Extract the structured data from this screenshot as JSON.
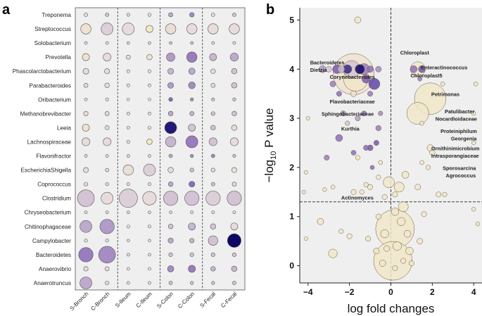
{
  "panels": {
    "a": "a",
    "b": "b"
  },
  "chart_data": [
    {
      "type": "bubble-matrix",
      "title": "",
      "rows": [
        "Treponema",
        "Streptococcus",
        "Solobacterium",
        "Prevotella",
        "Phascolarctobacterium",
        "Parabacteroides",
        "Oribacterium",
        "Methanobrevibacter",
        "Leeia",
        "Lachnospiraceae",
        "Flavonifractor",
        "EscherichiaShigella",
        "Coprococcus",
        "Clostridium",
        "Chryseobacterium",
        "Chitinophagaceae",
        "Campylobacter",
        "Bacteroidetes",
        "Anaerovibrio",
        "Anaerotruncus"
      ],
      "columns": [
        "S-Bronch",
        "C-Bronch",
        "S-Ileum",
        "C-Ileum",
        "S-Colon",
        "C-Colon",
        "S-Fecal",
        "C-Fecal"
      ],
      "size_values": [
        [
          0.08,
          0.08,
          0.05,
          0.06,
          0.12,
          0.14,
          0.08,
          0.08
        ],
        [
          0.5,
          0.6,
          0.6,
          0.3,
          0.5,
          0.5,
          0.5,
          0.5
        ],
        [
          0.04,
          0.04,
          0.03,
          0.03,
          0.04,
          0.04,
          0.04,
          0.04
        ],
        [
          0.3,
          0.35,
          0.12,
          0.2,
          0.38,
          0.5,
          0.3,
          0.36
        ],
        [
          0.22,
          0.18,
          0.05,
          0.06,
          0.22,
          0.25,
          0.15,
          0.2
        ],
        [
          0.12,
          0.15,
          0.05,
          0.05,
          0.22,
          0.28,
          0.12,
          0.2
        ],
        [
          0.04,
          0.06,
          0.03,
          0.03,
          0.1,
          0.06,
          0.05,
          0.06
        ],
        [
          0.14,
          0.12,
          0.05,
          0.05,
          0.15,
          0.12,
          0.1,
          0.15
        ],
        [
          0.3,
          0.12,
          0.05,
          0.06,
          0.6,
          0.3,
          0.15,
          0.2
        ],
        [
          0.35,
          0.35,
          0.06,
          0.2,
          0.5,
          0.6,
          0.35,
          0.35
        ],
        [
          0.04,
          0.04,
          0.04,
          0.03,
          0.08,
          0.06,
          0.08,
          0.05
        ],
        [
          0.18,
          0.08,
          0.5,
          0.6,
          0.2,
          0.1,
          0.1,
          0.18
        ],
        [
          0.1,
          0.06,
          0.05,
          0.05,
          0.15,
          0.22,
          0.08,
          0.12
        ],
        [
          0.9,
          0.6,
          1.0,
          0.7,
          0.75,
          0.75,
          0.75,
          0.75
        ],
        [
          0.04,
          0.04,
          0.03,
          0.03,
          0.04,
          0.04,
          0.04,
          0.04
        ],
        [
          0.6,
          0.75,
          0.06,
          0.05,
          0.15,
          0.3,
          0.2,
          0.3
        ],
        [
          0.06,
          0.06,
          0.03,
          0.03,
          0.18,
          0.14,
          0.45,
          0.7
        ],
        [
          0.75,
          0.9,
          0.04,
          0.04,
          0.1,
          0.1,
          0.1,
          0.1
        ],
        [
          0.14,
          0.12,
          0.04,
          0.04,
          0.25,
          0.3,
          0.15,
          0.2
        ],
        [
          0.6,
          0.1,
          0.04,
          0.04,
          0.08,
          0.06,
          0.06,
          0.08
        ]
      ],
      "color_values": [
        [
          0.2,
          0.3,
          0.2,
          0.1,
          0.4,
          0.5,
          0.2,
          0.3
        ],
        [
          0.1,
          0.25,
          0.2,
          0.0,
          0.15,
          0.2,
          0.2,
          0.2
        ],
        [
          0.2,
          0.2,
          0.2,
          0.2,
          0.3,
          0.3,
          0.2,
          0.2
        ],
        [
          0.1,
          0.2,
          0.1,
          0.1,
          0.45,
          0.55,
          0.35,
          0.4
        ],
        [
          0.2,
          0.15,
          0.1,
          0.1,
          0.35,
          0.4,
          0.2,
          0.3
        ],
        [
          0.2,
          0.2,
          0.1,
          0.1,
          0.45,
          0.5,
          0.2,
          0.3
        ],
        [
          0.2,
          0.2,
          0.1,
          0.1,
          0.6,
          0.5,
          0.3,
          0.3
        ],
        [
          0.2,
          0.2,
          0.1,
          0.1,
          0.4,
          0.35,
          0.3,
          0.3
        ],
        [
          0.1,
          0.2,
          0.1,
          0.1,
          0.95,
          0.3,
          0.3,
          0.2
        ],
        [
          0.2,
          0.2,
          0.1,
          0.0,
          0.35,
          0.55,
          0.3,
          0.2
        ],
        [
          0.2,
          0.2,
          0.2,
          0.2,
          0.4,
          0.5,
          0.5,
          0.3
        ],
        [
          0.2,
          0.2,
          0.15,
          0.25,
          0.2,
          0.3,
          0.2,
          0.1
        ],
        [
          0.2,
          0.2,
          0.1,
          0.1,
          0.4,
          0.6,
          0.3,
          0.2
        ],
        [
          0.3,
          0.2,
          0.25,
          0.2,
          0.3,
          0.3,
          0.25,
          0.3
        ],
        [
          0.2,
          0.2,
          0.1,
          0.1,
          0.2,
          0.2,
          0.2,
          0.2
        ],
        [
          0.4,
          0.45,
          0.1,
          0.1,
          0.3,
          0.35,
          0.3,
          0.2
        ],
        [
          0.2,
          0.2,
          0.1,
          0.1,
          0.4,
          0.35,
          0.3,
          1.0
        ],
        [
          0.55,
          0.5,
          0.1,
          0.1,
          0.3,
          0.3,
          0.3,
          0.3
        ],
        [
          0.2,
          0.2,
          0.1,
          0.1,
          0.5,
          0.55,
          0.35,
          0.35
        ],
        [
          0.4,
          0.2,
          0.1,
          0.1,
          0.3,
          0.3,
          0.3,
          0.3
        ]
      ],
      "group_separators_after_column": [
        2,
        4,
        6
      ],
      "grid": false
    },
    {
      "type": "scatter",
      "title": "",
      "xlabel": "log fold changes",
      "ylabel_parts": [
        "−log",
        "10",
        " P value"
      ],
      "xlim": [
        -4.4,
        4.4
      ],
      "ylim": [
        -0.35,
        5.25
      ],
      "xticks": [
        -4,
        -2,
        0,
        2,
        4
      ],
      "yticks": [
        0,
        1,
        2,
        3,
        4,
        5
      ],
      "reference_lines": {
        "x": 0,
        "y": 1.3
      },
      "grid": false,
      "points": [
        [
          -1.6,
          5.0,
          0.3,
          0.05
        ],
        [
          -1.8,
          3.9,
          3.2,
          0.1
        ],
        [
          -1.7,
          3.8,
          1.8,
          0.05
        ],
        [
          -1.9,
          4.0,
          1.2,
          0.3
        ],
        [
          -1.3,
          4.0,
          0.7,
          0.55
        ],
        [
          -0.8,
          3.7,
          0.7,
          0.8
        ],
        [
          -2.1,
          4.0,
          0.5,
          0.9
        ],
        [
          -1.5,
          4.0,
          0.55,
          1.0
        ],
        [
          -2.6,
          4.0,
          0.5,
          0.7
        ],
        [
          -3.3,
          4.0,
          0.35,
          0.45
        ],
        [
          -2.8,
          3.7,
          0.25,
          0.55
        ],
        [
          -1.2,
          3.8,
          0.45,
          0.7
        ],
        [
          -2.4,
          4.0,
          0.35,
          0.35
        ],
        [
          -1.0,
          4.0,
          0.3,
          0.6
        ],
        [
          -0.6,
          4.0,
          0.25,
          0.5
        ],
        [
          -3.0,
          4.0,
          0.25,
          0.3
        ],
        [
          -2.5,
          3.5,
          0.2,
          0.6
        ],
        [
          -1.0,
          3.5,
          0.2,
          0.55
        ],
        [
          -1.8,
          3.5,
          0.25,
          0.1
        ],
        [
          -2.3,
          3.1,
          0.2,
          0.5
        ],
        [
          -1.6,
          3.0,
          0.2,
          0.45
        ],
        [
          -1.3,
          3.1,
          0.18,
          0.6
        ],
        [
          -0.5,
          3.1,
          0.15,
          0.5
        ],
        [
          -2.1,
          2.9,
          0.15,
          0.3
        ],
        [
          -0.6,
          2.8,
          0.22,
          0.55
        ],
        [
          -2.5,
          2.6,
          0.35,
          0.6
        ],
        [
          -0.7,
          2.5,
          0.2,
          0.7
        ],
        [
          -1.8,
          2.3,
          0.18,
          0.6
        ],
        [
          -1.0,
          2.4,
          0.25,
          0.7
        ],
        [
          -1.2,
          2.4,
          0.2,
          0.6
        ],
        [
          -1.6,
          2.2,
          0.15,
          0.05
        ],
        [
          -3.1,
          2.2,
          0.2,
          0.55
        ],
        [
          -0.9,
          2.0,
          0.12,
          0.6
        ],
        [
          -4.0,
          3.0,
          0.08,
          0.05
        ],
        [
          -0.5,
          2.1,
          0.12,
          0.05
        ],
        [
          1.3,
          4.0,
          1.0,
          0.05
        ],
        [
          1.5,
          4.0,
          0.35,
          0.7
        ],
        [
          1.1,
          4.0,
          0.35,
          0.6
        ],
        [
          1.4,
          3.8,
          0.12,
          0.55
        ],
        [
          2.5,
          3.7,
          0.12,
          0.05
        ],
        [
          4.1,
          3.7,
          0.12,
          0.05
        ],
        [
          1.9,
          3.4,
          2.4,
          0.05
        ],
        [
          1.3,
          3.1,
          1.6,
          0.05
        ],
        [
          1.5,
          2.9,
          0.12,
          0.05
        ],
        [
          4.0,
          3.1,
          0.1,
          0.05
        ],
        [
          1.9,
          2.4,
          0.3,
          0.05
        ],
        [
          2.0,
          2.3,
          0.22,
          0.05
        ],
        [
          1.5,
          2.1,
          0.12,
          0.05
        ],
        [
          1.8,
          2.0,
          0.15,
          0.05
        ],
        [
          4.0,
          2.5,
          0.1,
          0.05
        ],
        [
          0.7,
          1.85,
          0.35,
          0.05
        ],
        [
          0.4,
          1.6,
          0.6,
          0.05
        ],
        [
          1.3,
          1.6,
          0.25,
          0.05
        ],
        [
          0.2,
          1.45,
          0.2,
          0.05
        ],
        [
          -0.1,
          1.7,
          0.7,
          0.05
        ],
        [
          -0.3,
          1.4,
          0.2,
          0.05
        ],
        [
          -1.0,
          1.6,
          0.2,
          0.05
        ],
        [
          -1.4,
          1.5,
          0.15,
          0.05
        ],
        [
          -2.8,
          1.6,
          0.12,
          0.05
        ],
        [
          -3.2,
          1.55,
          0.1,
          0.05
        ],
        [
          -1.8,
          1.5,
          0.2,
          0.05
        ],
        [
          -1.2,
          1.65,
          0.15,
          0.05
        ],
        [
          -0.6,
          1.8,
          0.15,
          0.05
        ],
        [
          -4.1,
          1.9,
          0.08,
          0.05
        ],
        [
          -4.2,
          1.5,
          0.08,
          0.05
        ],
        [
          2.3,
          1.45,
          0.2,
          0.05
        ],
        [
          2.6,
          1.45,
          0.15,
          0.05
        ],
        [
          4.0,
          1.15,
          0.1,
          0.05
        ],
        [
          4.2,
          0.85,
          0.1,
          0.05
        ],
        [
          0.2,
          0.75,
          3.0,
          0.05
        ],
        [
          0.1,
          0.1,
          3.0,
          0.05
        ],
        [
          -0.3,
          0.65,
          0.45,
          0.05
        ],
        [
          0.6,
          1.2,
          0.6,
          0.05
        ],
        [
          0.5,
          0.9,
          0.45,
          0.05
        ],
        [
          0.8,
          0.65,
          0.35,
          0.05
        ],
        [
          0.3,
          0.4,
          0.5,
          0.05
        ],
        [
          0.9,
          0.3,
          0.4,
          0.05
        ],
        [
          1.4,
          0.5,
          0.25,
          0.05
        ],
        [
          1.6,
          1.05,
          0.2,
          0.05
        ],
        [
          -2.0,
          0.6,
          0.2,
          0.05
        ],
        [
          -2.4,
          0.7,
          0.15,
          0.05
        ],
        [
          -3.4,
          0.9,
          0.3,
          0.05
        ],
        [
          -2.8,
          0.25,
          0.5,
          0.05
        ],
        [
          -1.1,
          0.55,
          0.2,
          0.05
        ],
        [
          -0.7,
          0.3,
          0.25,
          0.05
        ],
        [
          -4.1,
          0.55,
          0.08,
          0.05
        ],
        [
          -0.4,
          0.05,
          0.3,
          0.05
        ],
        [
          0.2,
          -0.05,
          0.2,
          0.05
        ],
        [
          -0.2,
          0.35,
          0.25,
          0.05
        ],
        [
          0.6,
          0.1,
          0.2,
          0.05
        ],
        [
          1.0,
          0.05,
          0.2,
          0.05
        ],
        [
          -0.6,
          1.0,
          0.2,
          0.05
        ],
        [
          0.2,
          1.1,
          0.4,
          0.05
        ]
      ],
      "point_fields": [
        "log_fold_change",
        "neg_log10_p",
        "relative_size",
        "color_level"
      ],
      "annotations": [
        {
          "text": "Bacteroidetes",
          "x": -3.9,
          "y": 4.1
        },
        {
          "text": "Dietzia",
          "x": -3.9,
          "y": 3.95
        },
        {
          "text": "Corynebacteriales",
          "x": -2.95,
          "y": 3.8
        },
        {
          "text": "Flavobacteriaceae",
          "x": -2.95,
          "y": 3.3
        },
        {
          "text": "Sphingobacteriaceae",
          "x": -3.35,
          "y": 3.05
        },
        {
          "text": "Kurthia",
          "x": -2.4,
          "y": 2.75
        },
        {
          "text": "Actinomyces",
          "x": -2.4,
          "y": 1.35
        },
        {
          "text": "Chloroplast",
          "x": 0.45,
          "y": 4.3
        },
        {
          "text": "Enteractinococcus",
          "x": 1.45,
          "y": 4.0
        },
        {
          "text": "Chloroplast5",
          "x": 0.95,
          "y": 3.83
        },
        {
          "text": "Petrimonas",
          "x": 1.95,
          "y": 3.45
        },
        {
          "text": "Patulibacter",
          "x": 2.6,
          "y": 3.1
        },
        {
          "text": "Nocardioidaceae",
          "x": 2.15,
          "y": 2.95
        },
        {
          "text": "Proteiniphilum",
          "x": 2.4,
          "y": 2.7
        },
        {
          "text": "Georgenia",
          "x": 2.9,
          "y": 2.55
        },
        {
          "text": "Ornithinimicrobium",
          "x": 1.95,
          "y": 2.35
        },
        {
          "text": "Intrasporangiaceae",
          "x": 1.95,
          "y": 2.2
        },
        {
          "text": "Sporosarcina",
          "x": 2.5,
          "y": 1.95
        },
        {
          "text": "Agrococcus",
          "x": 2.65,
          "y": 1.8
        }
      ]
    }
  ]
}
